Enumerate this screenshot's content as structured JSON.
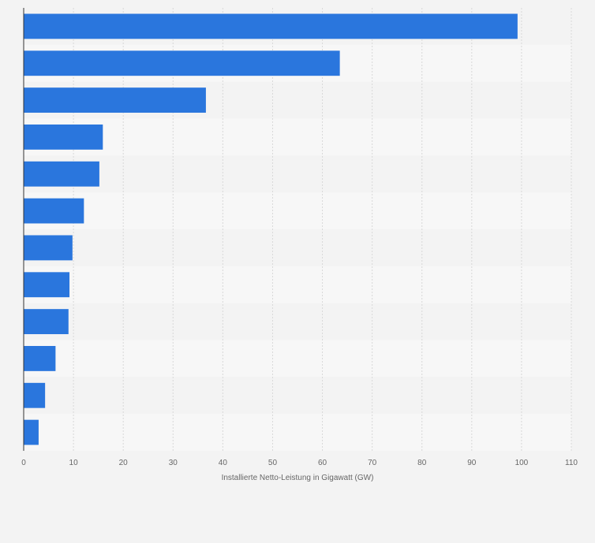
{
  "chart_data": {
    "type": "bar",
    "orientation": "horizontal",
    "title": "",
    "xlabel": "Installierte Netto-Leistung in Gigawatt (GW)",
    "ylabel": "",
    "xlim": [
      0,
      110
    ],
    "x_ticks": [
      0,
      10,
      20,
      30,
      40,
      50,
      60,
      70,
      80,
      90,
      100,
      110
    ],
    "categories": [
      "",
      "",
      "",
      "",
      "",
      "",
      "",
      "",
      "",
      "",
      "",
      ""
    ],
    "values": [
      99.2,
      63.5,
      36.6,
      15.9,
      15.2,
      12.1,
      9.8,
      9.2,
      9.0,
      6.4,
      4.3,
      3.0
    ],
    "grid": true,
    "bar_color": "#2a76dd",
    "band_colors": [
      "#f3f3f3",
      "#f7f7f7"
    ]
  }
}
